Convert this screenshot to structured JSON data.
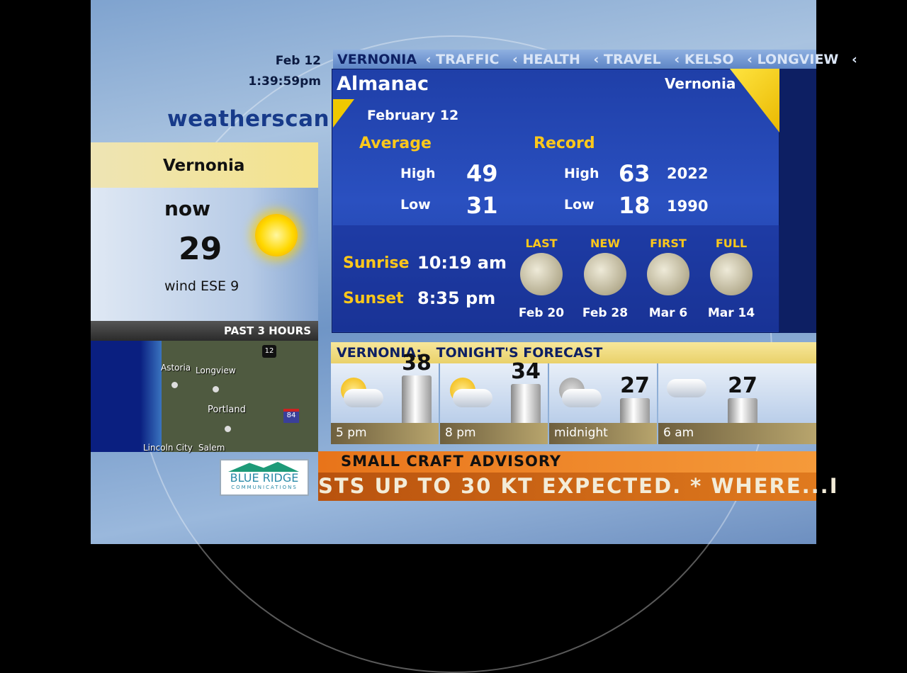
{
  "header": {
    "date": "Feb 12",
    "time": "1:39:59pm",
    "logo": "weatherscan"
  },
  "current": {
    "location": "Vernonia",
    "label": "now",
    "temp": "29",
    "wind": "wind ESE 9",
    "icon": "sun-icon"
  },
  "map": {
    "title": "PAST 3 HOURS",
    "labels": [
      "Astoria",
      "Longview",
      "Portland",
      "Lincoln City",
      "Salem"
    ],
    "shields": [
      "12",
      "84"
    ]
  },
  "sponsor": {
    "name": "BLUE RIDGE",
    "sub": "COMMUNICATIONS"
  },
  "nav": {
    "current": "VERNONIA",
    "items": [
      "TRAFFIC",
      "HEALTH",
      "TRAVEL",
      "KELSO",
      "LONGVIEW"
    ]
  },
  "almanac": {
    "title": "Almanac",
    "location": "Vernonia",
    "date": "February 12",
    "average": {
      "label": "Average",
      "high_label": "High",
      "high": "49",
      "low_label": "Low",
      "low": "31"
    },
    "record": {
      "label": "Record",
      "high_label": "High",
      "high": "63",
      "high_year": "2022",
      "low_label": "Low",
      "low": "18",
      "low_year": "1990"
    },
    "sunrise_label": "Sunrise",
    "sunrise": "10:19 am",
    "sunset_label": "Sunset",
    "sunset": "8:35 pm",
    "moons": [
      {
        "phase": "LAST",
        "date": "Feb 20"
      },
      {
        "phase": "NEW",
        "date": "Feb 28"
      },
      {
        "phase": "FIRST",
        "date": "Mar 6"
      },
      {
        "phase": "FULL",
        "date": "Mar 14"
      }
    ]
  },
  "forecast": {
    "location": "VERNONIA:",
    "title": "TONIGHT'S FORECAST",
    "periods": [
      {
        "time": "5 pm",
        "temp": "38",
        "icon": "partly-cloudy-icon"
      },
      {
        "time": "8 pm",
        "temp": "34",
        "icon": "partly-cloudy-icon"
      },
      {
        "time": "midnight",
        "temp": "27",
        "icon": "partly-cloudy-night-icon"
      },
      {
        "time": "6 am",
        "temp": "27",
        "icon": "cloudy-icon"
      }
    ]
  },
  "advisory": {
    "title": "SMALL CRAFT ADVISORY",
    "text": "STS UP TO 30 KT EXPECTED. * WHERE...I"
  },
  "colors": {
    "nav_current": "#0d1f63",
    "nav_item": "#dbe6f7",
    "accent_yellow": "#ffc81a",
    "advisory": "#e8741a"
  }
}
